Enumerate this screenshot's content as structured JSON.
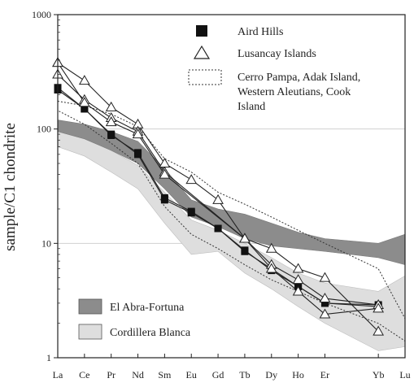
{
  "chart_data": {
    "type": "line",
    "title": "",
    "xlabel": "",
    "ylabel": "sample/C1 chondrite",
    "y_scale": "log",
    "ylim": [
      1,
      1000
    ],
    "y_ticks": [
      {
        "value": 1,
        "label": "1"
      },
      {
        "value": 10,
        "label": "10"
      },
      {
        "value": 100,
        "label": "100"
      },
      {
        "value": 1000,
        "label": "1000"
      }
    ],
    "grid": "horizontal",
    "x_ticks": [
      {
        "pos": 0,
        "label": "La"
      },
      {
        "pos": 1,
        "label": "Ce"
      },
      {
        "pos": 2,
        "label": "Pr"
      },
      {
        "pos": 3,
        "label": "Nd"
      },
      {
        "pos": 4,
        "label": "Sm"
      },
      {
        "pos": 5,
        "label": "Eu"
      },
      {
        "pos": 6,
        "label": "Gd"
      },
      {
        "pos": 7,
        "label": "Tb"
      },
      {
        "pos": 8,
        "label": "Dy"
      },
      {
        "pos": 9,
        "label": "Ho"
      },
      {
        "pos": 10,
        "label": "Er"
      },
      {
        "pos": 12,
        "label": "Yb"
      },
      {
        "pos": 13,
        "label": "Lu"
      }
    ],
    "legend_top": {
      "placement": "top-right",
      "items": [
        {
          "marker": "filled-square",
          "label": "Aird Hills"
        },
        {
          "marker": "open-triangle",
          "label": "Lusancay Islands"
        },
        {
          "marker": "dotted-box",
          "label": "Cerro Pampa, Adak Island, Western Aleutians, Cook Island",
          "lines": [
            "Cerro Pampa, Adak Island,",
            "Western Aleutians, Cook",
            "Island"
          ]
        }
      ]
    },
    "legend_bottom": {
      "placement": "bottom-left",
      "items": [
        {
          "swatch": "dark",
          "label": "El Abra-Fortuna"
        },
        {
          "swatch": "light",
          "label": "Cordillera Blanca"
        }
      ]
    },
    "colors": {
      "dark_field": "#8c8c8c",
      "light_field": "#dedede",
      "line": "#222222",
      "grid": "#d0d0d0"
    },
    "fields": {
      "cordillera_blanca": {
        "upper": [
          [
            0,
            95
          ],
          [
            1,
            85
          ],
          [
            2,
            65
          ],
          [
            3,
            48
          ],
          [
            4,
            28
          ],
          [
            5,
            16
          ],
          [
            6,
            13
          ],
          [
            7,
            10
          ],
          [
            8,
            7.5
          ],
          [
            9,
            5.5
          ],
          [
            10,
            4.5
          ],
          [
            12,
            3.8
          ],
          [
            13,
            5.2
          ]
        ],
        "lower": [
          [
            0,
            70
          ],
          [
            1,
            58
          ],
          [
            2,
            42
          ],
          [
            3,
            30
          ],
          [
            4,
            15
          ],
          [
            5,
            8
          ],
          [
            6,
            8.5
          ],
          [
            7,
            5.5
          ],
          [
            8,
            4
          ],
          [
            9,
            2.8
          ],
          [
            10,
            2
          ],
          [
            12,
            1.15
          ],
          [
            13,
            1.25
          ]
        ]
      },
      "el_abra_fortuna": {
        "upper": [
          [
            0,
            120
          ],
          [
            1,
            110
          ],
          [
            2,
            95
          ],
          [
            3,
            78
          ],
          [
            4,
            45
          ],
          [
            5,
            24
          ],
          [
            6,
            20
          ],
          [
            7,
            18
          ],
          [
            8,
            15
          ],
          [
            9,
            12.5
          ],
          [
            10,
            11
          ],
          [
            12,
            10
          ],
          [
            13,
            12
          ]
        ],
        "lower": [
          [
            0,
            95
          ],
          [
            1,
            82
          ],
          [
            2,
            65
          ],
          [
            3,
            50
          ],
          [
            4,
            30
          ],
          [
            5,
            17
          ],
          [
            6,
            14
          ],
          [
            7,
            11
          ],
          [
            8,
            9.5
          ],
          [
            9,
            9
          ],
          [
            10,
            8.5
          ],
          [
            12,
            7.5
          ],
          [
            13,
            6.5
          ]
        ]
      },
      "cerro_pampa_outline": [
        [
          0,
          175
        ],
        [
          1,
          160
        ],
        [
          2,
          135
        ],
        [
          3,
          105
        ],
        [
          4,
          55
        ],
        [
          5,
          42
        ],
        [
          6,
          28
        ],
        [
          7,
          22
        ],
        [
          8,
          17
        ],
        [
          9,
          13
        ],
        [
          10,
          10
        ],
        [
          12,
          6
        ],
        [
          13,
          2.2
        ],
        [
          13,
          1.4
        ],
        [
          12,
          2
        ],
        [
          10,
          3
        ],
        [
          9,
          3.8
        ],
        [
          8,
          4.8
        ],
        [
          7,
          6.5
        ],
        [
          6,
          9
        ],
        [
          5,
          12
        ],
        [
          4,
          21
        ],
        [
          3,
          50
        ],
        [
          2,
          75
        ],
        [
          1,
          110
        ],
        [
          0,
          145
        ]
      ]
    },
    "series": [
      {
        "name": "Aird Hills",
        "marker": "filled-square",
        "values": [
          [
            0,
            220
          ],
          [
            1,
            150
          ],
          [
            2,
            88
          ],
          [
            3,
            62
          ],
          [
            4,
            25
          ],
          [
            5,
            19
          ],
          [
            6,
            13.5
          ],
          [
            7,
            8.5
          ],
          [
            8,
            6
          ],
          [
            9,
            4.2
          ],
          [
            10,
            3
          ],
          [
            12,
            2.8
          ]
        ]
      },
      {
        "name": "Aird Hills",
        "marker": "filled-square",
        "values": [
          [
            0,
            230
          ],
          [
            1,
            150
          ],
          [
            2,
            90
          ],
          [
            3,
            60
          ],
          [
            4,
            24
          ],
          [
            5,
            18.5
          ],
          [
            6,
            13.5
          ],
          [
            7,
            8.7
          ],
          [
            8,
            5.8
          ],
          [
            9,
            4.2
          ],
          [
            10,
            3
          ],
          [
            12,
            2.9
          ]
        ]
      },
      {
        "name": "Lusancay Islands",
        "marker": "open-triangle",
        "values": [
          [
            0,
            380
          ],
          [
            1,
            265
          ],
          [
            2,
            155
          ],
          [
            3,
            110
          ],
          [
            4,
            50
          ],
          [
            5,
            36
          ],
          [
            6,
            24
          ],
          [
            7,
            11
          ],
          [
            8,
            9
          ],
          [
            9,
            6
          ],
          [
            10,
            5
          ],
          [
            12,
            1.7
          ]
        ]
      },
      {
        "name": "Lusancay Islands",
        "marker": "open-triangle",
        "values": [
          [
            0,
            300
          ],
          [
            1,
            180
          ],
          [
            2,
            125
          ],
          [
            3,
            95
          ],
          [
            4,
            42
          ],
          [
            7,
            11
          ],
          [
            8,
            6.5
          ],
          [
            9,
            4.8
          ],
          [
            10,
            3.3
          ],
          [
            12,
            2.9
          ]
        ]
      },
      {
        "name": "Lusancay Islands",
        "marker": "open-triangle",
        "values": [
          [
            0,
            380
          ],
          [
            1,
            170
          ],
          [
            2,
            115
          ],
          [
            3,
            90
          ],
          [
            4,
            40
          ],
          [
            7,
            11
          ],
          [
            8,
            6
          ],
          [
            9,
            3.8
          ],
          [
            10,
            2.4
          ],
          [
            12,
            2.7
          ]
        ]
      }
    ]
  }
}
